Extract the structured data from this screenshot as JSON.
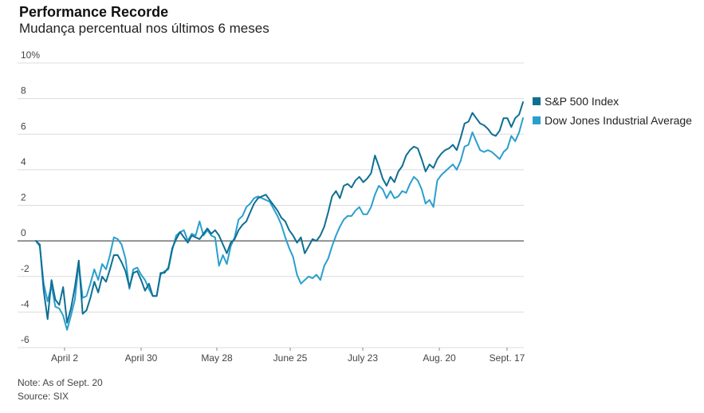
{
  "chart_data": {
    "type": "line",
    "title": "Performance Recorde",
    "subtitle": "Mudança percentual nos últimos 6 meses",
    "y_ticks": [
      {
        "value": 10,
        "label": "10%"
      },
      {
        "value": 8,
        "label": "8"
      },
      {
        "value": 6,
        "label": "6"
      },
      {
        "value": 4,
        "label": "4"
      },
      {
        "value": 2,
        "label": "2"
      },
      {
        "value": 0,
        "label": "0"
      },
      {
        "value": -2,
        "label": "-2"
      },
      {
        "value": -4,
        "label": "-4"
      },
      {
        "value": -6,
        "label": "-6"
      }
    ],
    "x_ticks": [
      "April 2",
      "April 30",
      "May 28",
      "June 25",
      "July 23",
      "Aug. 20",
      "Sept. 17"
    ],
    "ylim": [
      -6,
      10
    ],
    "grid": true,
    "legend_position": "right",
    "series": [
      {
        "name": "S&P 500 Index",
        "color": "#0f6f93",
        "values": [
          0,
          -0.2,
          -2.8,
          -4.4,
          -2.2,
          -3.3,
          -3.6,
          -2.6,
          -4.6,
          -3.8,
          -2.6,
          -1.1,
          -4.1,
          -3.9,
          -3.2,
          -2.3,
          -2.9,
          -2.0,
          -2.3,
          -1.6,
          -0.8,
          -0.8,
          -1.2,
          -1.7,
          -2.6,
          -1.8,
          -1.7,
          -2.2,
          -2.8,
          -2.4,
          -3.1,
          -3.1,
          -1.8,
          -1.8,
          -1.5,
          -0.4,
          0.1,
          0.5,
          0.2,
          -0.1,
          0.3,
          0.2,
          0.1,
          0.4,
          0.7,
          0.4,
          0.6,
          0.3,
          -0.2,
          -0.7,
          -0.1,
          0.1,
          0.6,
          0.9,
          1.1,
          1.6,
          2.1,
          2.4,
          2.5,
          2.6,
          2.3,
          2.0,
          1.7,
          1.3,
          1.1,
          0.6,
          0.3,
          -0.1,
          0.2,
          -0.7,
          -0.3,
          0.1,
          0.0,
          0.3,
          0.8,
          1.6,
          2.5,
          2.8,
          2.4,
          3.1,
          3.2,
          3.0,
          3.4,
          3.6,
          3.3,
          3.5,
          3.8,
          4.8,
          4.2,
          3.5,
          3.1,
          3.6,
          3.3,
          3.9,
          4.2,
          4.8,
          5.1,
          5.3,
          5.2,
          4.6,
          3.9,
          4.3,
          4.1,
          4.6,
          4.9,
          5.1,
          5.2,
          5.4,
          5.1,
          5.8,
          6.6,
          6.7,
          7.2,
          6.9,
          6.6,
          6.5,
          6.3,
          6.0,
          5.9,
          6.2,
          6.9,
          6.9,
          6.4,
          6.9,
          7.1,
          7.8
        ]
      },
      {
        "name": "Dow Jones Industrial Average",
        "color": "#2a9fcd",
        "values": [
          0,
          -0.3,
          -2.4,
          -3.4,
          -2.5,
          -3.7,
          -3.8,
          -4.2,
          -5.0,
          -4.2,
          -3.3,
          -1.3,
          -3.2,
          -3.1,
          -2.4,
          -1.6,
          -2.2,
          -1.3,
          -1.6,
          -0.8,
          0.2,
          0.1,
          -0.2,
          -1.0,
          -2.7,
          -1.6,
          -1.5,
          -1.9,
          -2.2,
          -2.7,
          -3.1,
          -3.1,
          -1.9,
          -1.7,
          -1.6,
          -0.5,
          0.3,
          0.5,
          0.6,
          0.0,
          0.4,
          0.3,
          1.1,
          0.3,
          0.6,
          0.3,
          0.2,
          -1.4,
          -0.8,
          -1.3,
          -0.3,
          0.2,
          1.2,
          1.4,
          1.9,
          2.1,
          2.4,
          2.5,
          2.4,
          2.3,
          2.2,
          1.8,
          1.4,
          0.9,
          0.2,
          -0.4,
          -0.9,
          -1.9,
          -2.4,
          -2.2,
          -2.0,
          -2.1,
          -1.9,
          -2.2,
          -1.4,
          -1.0,
          -0.3,
          0.3,
          0.8,
          1.2,
          1.4,
          1.4,
          1.7,
          1.9,
          1.5,
          1.5,
          1.9,
          2.6,
          3.1,
          2.9,
          2.4,
          2.8,
          2.4,
          2.5,
          2.8,
          2.7,
          3.2,
          3.6,
          3.4,
          2.9,
          2.1,
          2.3,
          1.9,
          3.4,
          3.7,
          3.9,
          4.1,
          4.3,
          4.0,
          4.5,
          5.3,
          5.4,
          6.1,
          5.6,
          5.1,
          5.0,
          5.1,
          5.0,
          4.8,
          4.6,
          5.0,
          5.2,
          5.9,
          5.6,
          6.1,
          6.9
        ]
      }
    ]
  },
  "footer": {
    "note": "Note: As of Sept. 20",
    "source": "Source: SIX"
  }
}
